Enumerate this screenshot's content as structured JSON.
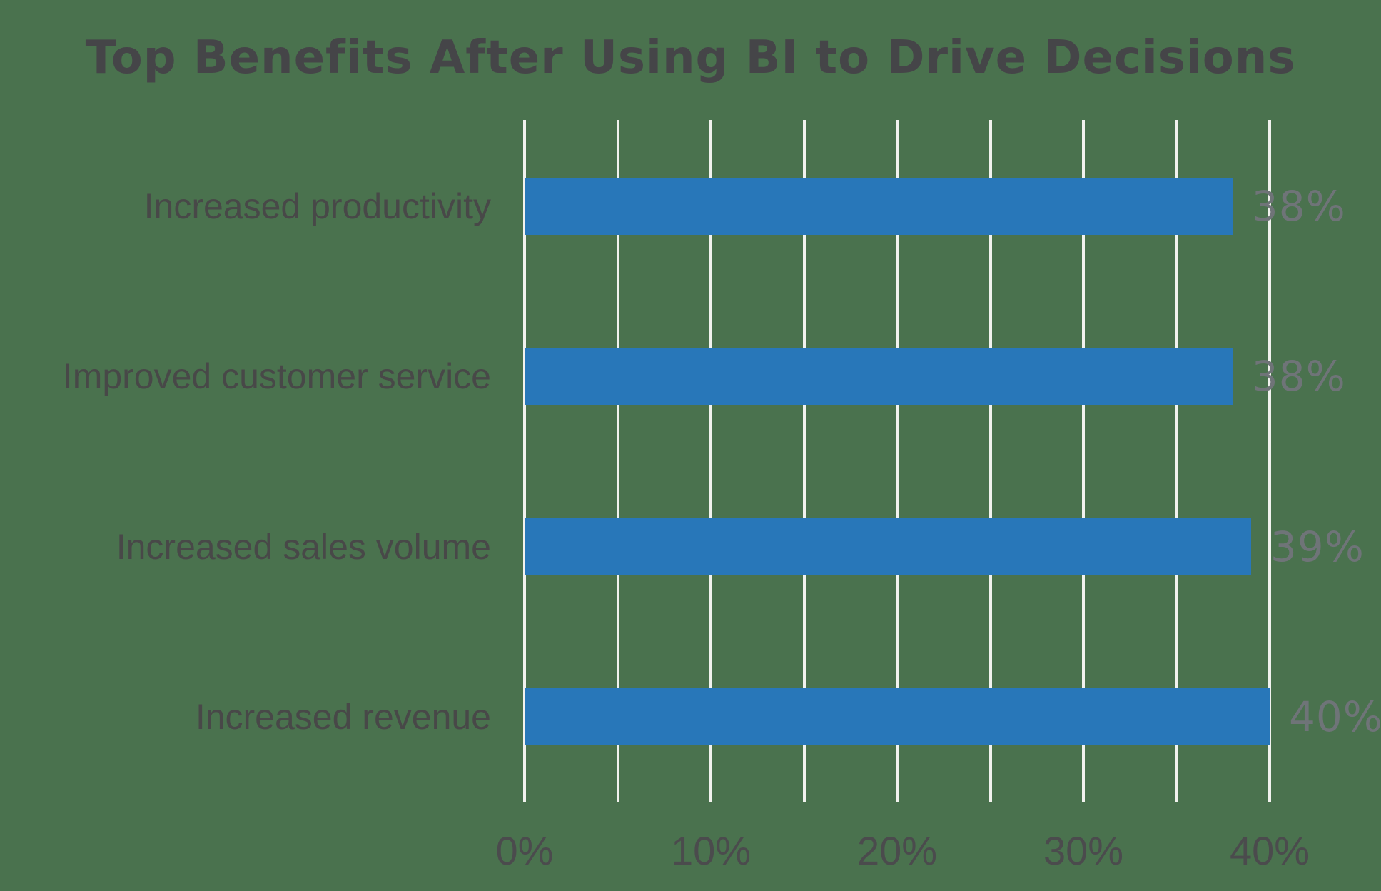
{
  "title": "Top Benefits After Using BI to Drive Decisions",
  "colors": {
    "background": "#4A724E",
    "bar": "#2877B9",
    "gridline": "#F1F2EE",
    "title_text": "#454548",
    "category_text": "#484848",
    "value_text": "#6F7478",
    "tick_text": "#4B4B4D"
  },
  "chart_data": {
    "type": "bar",
    "orientation": "horizontal",
    "title": "Top Benefits After Using BI to Drive Decisions",
    "categories": [
      "Increased productivity",
      "Improved customer service",
      "Increased sales volume",
      "Increased revenue"
    ],
    "values": [
      38,
      38,
      39,
      40
    ],
    "value_labels": [
      "38%",
      "38%",
      "39%",
      "40%"
    ],
    "xlabel": "",
    "ylabel": "",
    "xlim": [
      0,
      40
    ],
    "x_tick_labels": [
      "0%",
      "10%",
      "20%",
      "30%",
      "40%"
    ],
    "x_tick_values": [
      0,
      10,
      20,
      30,
      40
    ],
    "minor_gridline_step_percent": 5,
    "grid": "vertical minor gridlines, light on dark-green background",
    "legend": "none",
    "value_label_position": "right of bar end"
  },
  "layout_hints": {
    "note": "bars drawn over gridlines; value labels overlap last gridline"
  }
}
